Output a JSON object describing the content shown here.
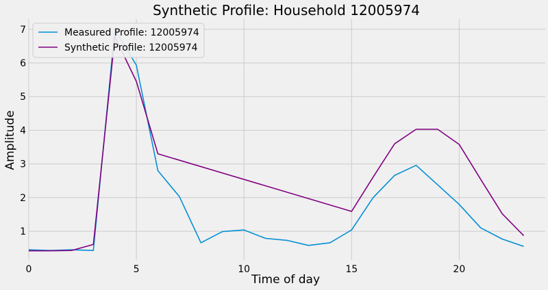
{
  "chart_data": {
    "type": "line",
    "title": "Synthetic Profile: Household 12005974",
    "xlabel": "Time of day",
    "ylabel": "Amplitude",
    "xlim": [
      0,
      24
    ],
    "ylim": [
      0.15,
      7.3
    ],
    "xticks": [
      0,
      5,
      10,
      15,
      20
    ],
    "yticks": [
      1,
      2,
      3,
      4,
      5,
      6,
      7
    ],
    "grid": true,
    "legend_position": "top-left",
    "x": [
      0,
      1,
      2,
      3,
      4,
      5,
      6,
      7,
      8,
      9,
      10,
      11,
      12,
      13,
      14,
      15,
      16,
      17,
      18,
      19,
      20,
      21,
      22,
      23
    ],
    "series": [
      {
        "name": "Measured Profile: 12005974",
        "color": "#008fd5",
        "values": [
          0.45,
          0.43,
          0.45,
          0.43,
          7.0,
          5.93,
          2.8,
          2.03,
          0.66,
          0.99,
          1.04,
          0.79,
          0.73,
          0.58,
          0.66,
          1.04,
          2.0,
          2.66,
          2.96,
          2.38,
          1.8,
          1.1,
          0.77,
          0.55
        ]
      },
      {
        "name": "Synthetic Profile: 12005974",
        "color": "#800080",
        "values": [
          0.42,
          0.42,
          0.43,
          0.61,
          6.78,
          5.45,
          3.3,
          null,
          null,
          null,
          null,
          null,
          null,
          null,
          null,
          1.59,
          2.61,
          3.6,
          4.03,
          4.03,
          3.58,
          2.54,
          1.52,
          0.87
        ]
      }
    ]
  }
}
